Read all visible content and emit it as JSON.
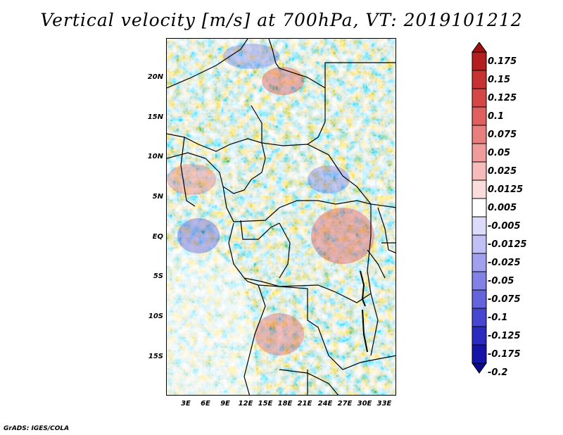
{
  "title": "Vertical velocity [m/s] at 700hPa, VT: 2019101212",
  "footer": "GrADS: IGES/COLA",
  "lat_labels": [
    "20N",
    "15N",
    "10N",
    "5N",
    "EQ",
    "5S",
    "10S",
    "15S"
  ],
  "lon_labels": [
    "3E",
    "6E",
    "9E",
    "12E",
    "15E",
    "18E",
    "21E",
    "24E",
    "27E",
    "30E",
    "33E"
  ],
  "colorbar": {
    "labels": [
      "0.175",
      "0.15",
      "0.125",
      "0.1",
      "0.075",
      "0.05",
      "0.025",
      "0.0125",
      "0.005",
      "-0.005",
      "-0.0125",
      "-0.025",
      "-0.05",
      "-0.075",
      "-0.1",
      "-0.125",
      "-0.175",
      "-0.2"
    ],
    "colors": [
      "#a01010",
      "#b41e1e",
      "#c83232",
      "#d64646",
      "#e06060",
      "#e87e7e",
      "#f09c9c",
      "#f6bcbc",
      "#fadcdc",
      "#ffffff",
      "#dcdcfa",
      "#c0c0f4",
      "#a0a0ee",
      "#8282e6",
      "#6464dc",
      "#4646d0",
      "#2a2ac0",
      "#1414a8",
      "#0a0a90"
    ]
  }
}
